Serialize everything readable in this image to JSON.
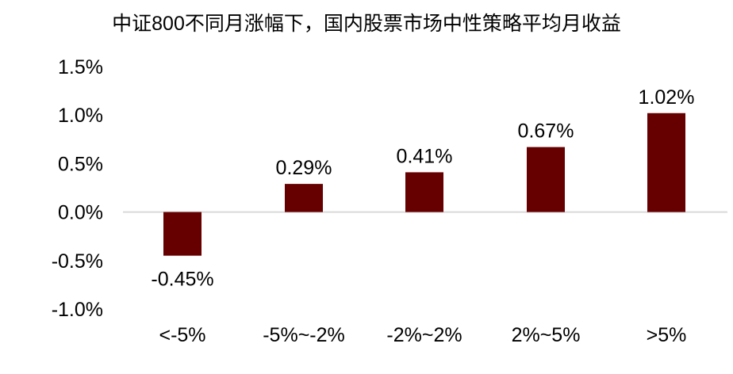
{
  "chart_data": {
    "type": "bar",
    "title": "中证800不同月涨幅下，国内股票市场中性策略平均月收益",
    "categories": [
      "<-5%",
      "-5%~-2%",
      "-2%~2%",
      "2%~5%",
      ">5%"
    ],
    "values": [
      -0.45,
      0.29,
      0.41,
      0.67,
      1.02
    ],
    "data_labels": [
      "-0.45%",
      "0.29%",
      "0.41%",
      "0.67%",
      "1.02%"
    ],
    "ylim": [
      -1.0,
      1.5
    ],
    "yticks": [
      1.5,
      1.0,
      0.5,
      0.0,
      -0.5,
      -1.0
    ],
    "ytick_labels": [
      "1.5%",
      "1.0%",
      "0.5%",
      "0.0%",
      "-0.5%",
      "-1.0%"
    ],
    "xlabel": "",
    "ylabel": "",
    "grid": false,
    "legend": "none",
    "bar_color": "#660000",
    "axis_color": "#d9d9d9"
  }
}
